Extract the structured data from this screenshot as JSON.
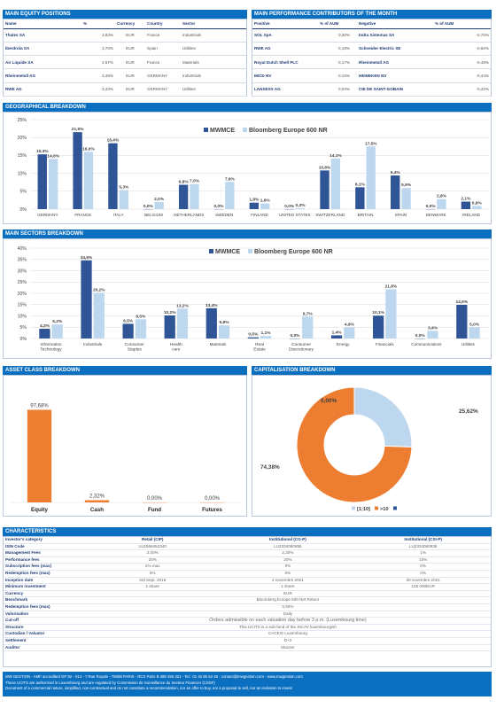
{
  "equity": {
    "title": "MAIN EQUITY POSITIONS",
    "headers": [
      "Name",
      "%",
      "Currency",
      "Country",
      "Sector"
    ],
    "rows": [
      [
        "Thales SA",
        "3,93%",
        "EUR",
        "France",
        "Industrials"
      ],
      [
        "Iberdrola SA",
        "3,70%",
        "EUR",
        "Spain",
        "Utilities"
      ],
      [
        "Air Liquide SA",
        "3,57%",
        "EUR",
        "France",
        "Materials"
      ],
      [
        "Rheinmetall AG",
        "3,49%",
        "EUR",
        "GERMANY",
        "Industrials"
      ],
      [
        "RWE AG",
        "3,43%",
        "EUR",
        "GERMANY",
        "Utilities"
      ]
    ]
  },
  "contributors": {
    "title": "MAIN PERFORMANCE CONTRIBUTORS OF THE MONTH",
    "headers": [
      "Positive",
      "% of AUM",
      "Negative",
      "% of AUM"
    ],
    "rows": [
      [
        "SOL SpA",
        "0,30%",
        "Indra Sistemas SA",
        "-0,76%"
      ],
      [
        "RWE AG",
        "0,18%",
        "Schneider Electric SE",
        "-0,60%"
      ],
      [
        "Royal Dutch Shell PLC",
        "0,17%",
        "Rheinmetall AG",
        "-0,48%"
      ],
      [
        "IMCD NV",
        "0,15%",
        "HEINEKEN NV",
        "-0,44%"
      ],
      [
        "LANXESS AG",
        "0,04%",
        "CIE DE SAINT-GOBAIN",
        "-0,42%"
      ]
    ]
  },
  "geo_title": "GEOGRAPHICAL BREAKDOWN",
  "sectors_title": "MAIN SECTORS BREAKDOWN",
  "asset_title": "ASSET CLASS BREAKDOWN",
  "cap_title": "CAPITALISATION BREAKDOWN",
  "chart_data": [
    {
      "type": "bar",
      "title": "",
      "categories": [
        "GERMANY",
        "FRANCE",
        "ITALY",
        "BELGIUM",
        "NETHERLANDS",
        "SWEDEN",
        "FINLAND",
        "UNITED STATES",
        "SWITZERLAND",
        "BRITAIN",
        "SPAIN",
        "DENMARK",
        "IRELAND"
      ],
      "series": [
        {
          "name": "MWMCE",
          "values": [
            15.3,
            21.5,
            18.4,
            0.0,
            6.8,
            0.0,
            1.8,
            0.0,
            10.8,
            6.1,
            9.4,
            0.0,
            2.1
          ]
        },
        {
          "name": "Bloomberg Europe 600 NR",
          "values": [
            14.0,
            16.0,
            5.3,
            2.0,
            7.0,
            7.6,
            1.6,
            0.3,
            14.1,
            17.5,
            5.9,
            2.8,
            0.9
          ]
        }
      ],
      "value_labels": [
        [
          "15,3%",
          "21,5%",
          "18,4%",
          "0,0%",
          "6,8%",
          "0,0%",
          "1,8%",
          "0,0%",
          "10,8%",
          "6,1%",
          "9,4%",
          "0,0%",
          "2,1%"
        ],
        [
          "14,0%",
          "16,0%",
          "5,3%",
          "2,0%",
          "7,0%",
          "7,6%",
          "1,6%",
          "0,3%",
          "14,1%",
          "17,5%",
          "5,9%",
          "2,8%",
          "0,9%"
        ]
      ],
      "yticks": [
        "0%",
        "5%",
        "10%",
        "15%",
        "20%",
        "25%"
      ],
      "ylim": [
        0,
        25
      ],
      "legend": "top-right"
    },
    {
      "type": "bar",
      "title": "",
      "categories": [
        "Information Technology",
        "Industrials",
        "Consumer Staples",
        "Health care",
        "Materials",
        "Real Estate",
        "Consumer Discretionary",
        "Energy",
        "Financials",
        "Communications",
        "Utilities"
      ],
      "series": [
        {
          "name": "MWMCE",
          "values": [
            4.3,
            34.6,
            6.5,
            10.2,
            13.4,
            0.5,
            0.0,
            1.4,
            10.1,
            0.0,
            14.9
          ]
        },
        {
          "name": "Bloomberg Europe 600 NR",
          "values": [
            6.2,
            20.2,
            8.5,
            13.2,
            5.8,
            1.1,
            9.7,
            4.9,
            21.8,
            3.4,
            5.0
          ]
        }
      ],
      "value_labels": [
        [
          "4,3%",
          "34,6%",
          "6,5%",
          "10,2%",
          "13,4%",
          "0,5%",
          "0,0%",
          "1,4%",
          "10,1%",
          "0,0%",
          "14,9%"
        ],
        [
          "6,2%",
          "20,2%",
          "8,5%",
          "13,2%",
          "5,8%",
          "1,1%",
          "9,7%",
          "4,9%",
          "21,8%",
          "3,4%",
          "5,0%"
        ]
      ],
      "yticks": [
        "0%",
        "5%",
        "10%",
        "15%",
        "20%",
        "25%",
        "30%",
        "35%",
        "40%"
      ],
      "ylim": [
        0,
        40
      ],
      "legend": "top-right"
    },
    {
      "type": "bar",
      "title": "",
      "categories": [
        "Equity",
        "Cash",
        "Fund",
        "Futures"
      ],
      "values": [
        97.68,
        2.32,
        0.0,
        0.0
      ],
      "value_labels": [
        "97,68%",
        "2,32%",
        "0,00%",
        "0,00%"
      ],
      "ylim": [
        0,
        100
      ]
    },
    {
      "type": "pie",
      "title": "",
      "categories": [
        "[1;10]",
        ">10",
        ""
      ],
      "values": [
        25.62,
        74.38,
        0.0
      ],
      "value_labels": [
        "25,62%",
        "74,38%",
        "0,00%"
      ],
      "legend": "bottom"
    }
  ],
  "colors": {
    "header": "#0b6fc0",
    "mwmce": "#2f5597",
    "bench": "#bdd7ee",
    "equity_bar": "#ed7d31",
    "pie_small": "#bdd7ee",
    "pie_large": "#ed7d31"
  },
  "characteristics": {
    "title": "CHARACTERISTICS",
    "columns": [
      "Retail (CIP)",
      "Institutional (CG-P)",
      "Institutional (CSI-P)"
    ],
    "share_rows": [
      [
        "Investor's category",
        "Retail (CIP)",
        "Institutional (CG-P)",
        "Institutional (CSI-P)"
      ],
      [
        "ISIN Code",
        "LU1868452340",
        "LU2334080855",
        "LU2334080939"
      ],
      [
        "Management Fees",
        "2,00%",
        "2,20%",
        "1%"
      ],
      [
        "Performance fees",
        "20%",
        "20%",
        "10%"
      ],
      [
        "Subscription fees (max)",
        "2% max",
        "0%",
        "0%"
      ],
      [
        "Redemption fees (max)",
        "0%",
        "0%",
        "0%"
      ],
      [
        "Inception date",
        "3rd Sept. 2018",
        "2 novembre 2021",
        "30 novembre 2021"
      ],
      [
        "Minimum investment",
        "1 share",
        "1 share",
        "125 000EUR"
      ]
    ],
    "common_rows": [
      [
        "Currency",
        "EUR"
      ],
      [
        "Benchmark",
        "Bloomberg Europe 600 Net Return"
      ],
      [
        "Redemption fees (max)",
        "0,00%"
      ],
      [
        "Valorisation",
        "Daily"
      ],
      [
        "Cut-off",
        "Orders admissible on each valuation day before 3 p.m. (Luxembourg time)"
      ],
      [
        "Structure",
        "This UCITS is a sub-fund of the SICAV luxembourgish"
      ],
      [
        "Custodian / Valuator",
        "CACEIS Luxembourg"
      ],
      [
        "Settlement",
        "D+2"
      ],
      [
        "Auditor",
        "Mazars"
      ]
    ]
  },
  "footer": {
    "line1": "MW GESTION - AMF accredited GP 92 - 014 - 7 Rue Royale - 75008 PARIS - RCS Paris B 388 455 321 - Tel : 01 42 86 54 45 - contact@mwgestion.com - www.mwgestion.com",
    "line2": "These UCITS are authorized in Luxembourg and are regulated by Commission de Surveillance du Secteur Financier (CSSF)",
    "line3": "Document of a commercial nature, simplified, non-contractual and do not constitute a recommendation, nor an offer to buy, nor a proposal to sell, nor an invitation to invest"
  }
}
